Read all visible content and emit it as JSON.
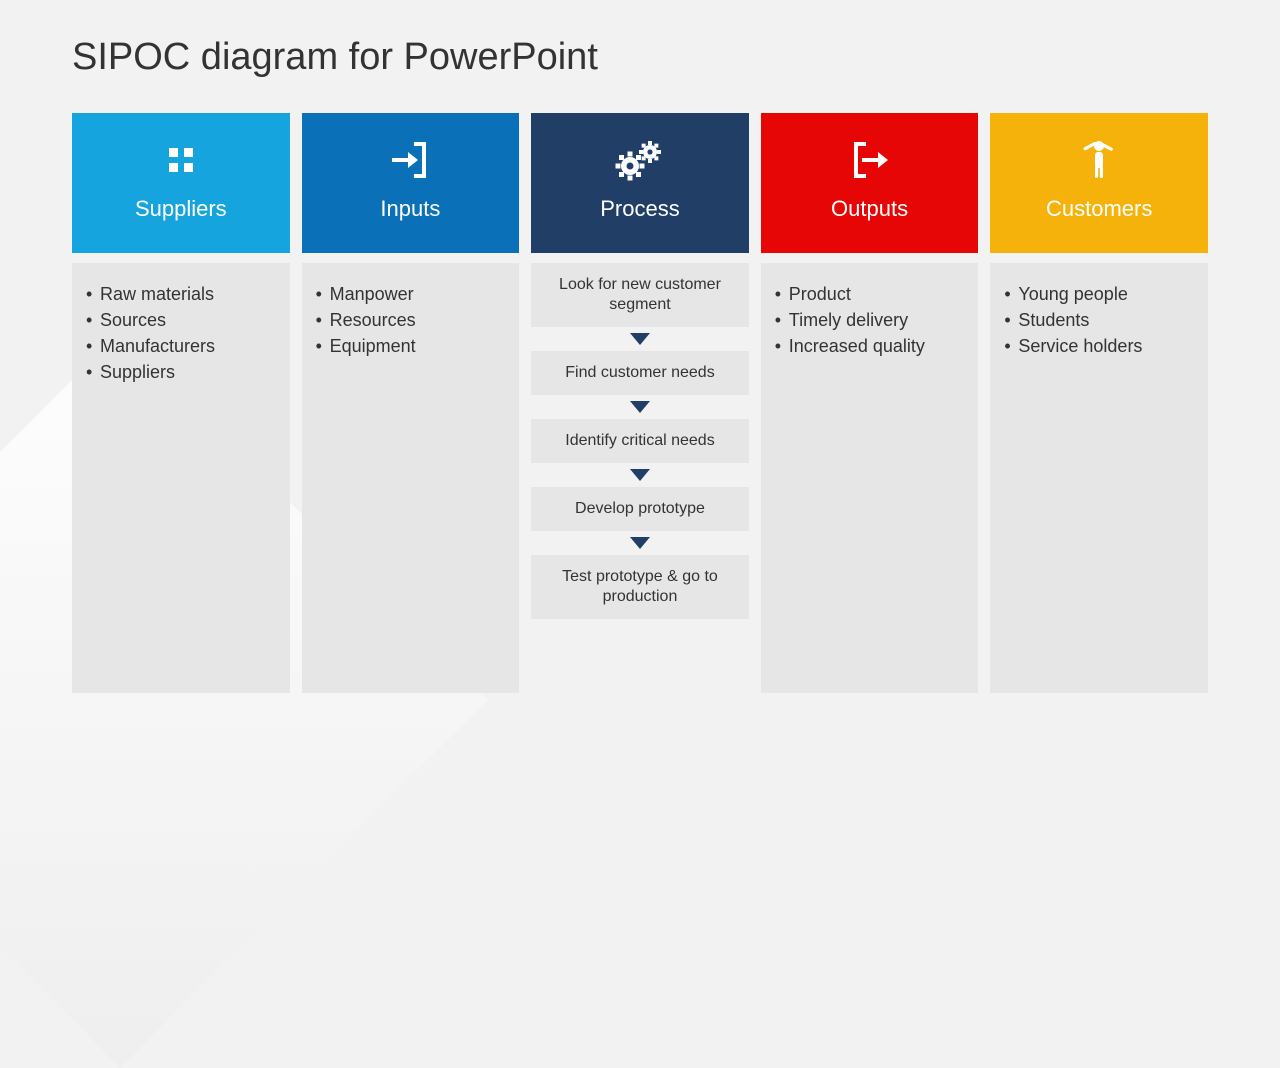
{
  "title": "SIPOC diagram for PowerPoint",
  "arrow_color": "#203e66",
  "columns": [
    {
      "key": "suppliers",
      "label": "Suppliers",
      "header_color": "#15a4dd",
      "icon": "grid",
      "type": "bullets",
      "items": [
        "Raw materials",
        "Sources",
        "Manufacturers",
        "Suppliers"
      ]
    },
    {
      "key": "inputs",
      "label": "Inputs",
      "header_color": "#0a71b8",
      "icon": "login",
      "type": "bullets",
      "items": [
        "Manpower",
        "Resources",
        "Equipment"
      ]
    },
    {
      "key": "process",
      "label": "Process",
      "header_color": "#203e66",
      "icon": "gears",
      "type": "steps",
      "steps": [
        "Look for new customer segment",
        "Find customer needs",
        "Identify critical needs",
        "Develop prototype",
        "Test prototype & go to production"
      ]
    },
    {
      "key": "outputs",
      "label": "Outputs",
      "header_color": "#e60606",
      "icon": "logout",
      "type": "bullets",
      "items": [
        "Product",
        "Timely delivery",
        "Increased quality"
      ]
    },
    {
      "key": "customers",
      "label": "Customers",
      "header_color": "#f4b20b",
      "icon": "person",
      "type": "bullets",
      "items": [
        "Young people",
        "Students",
        "Service holders"
      ]
    }
  ]
}
